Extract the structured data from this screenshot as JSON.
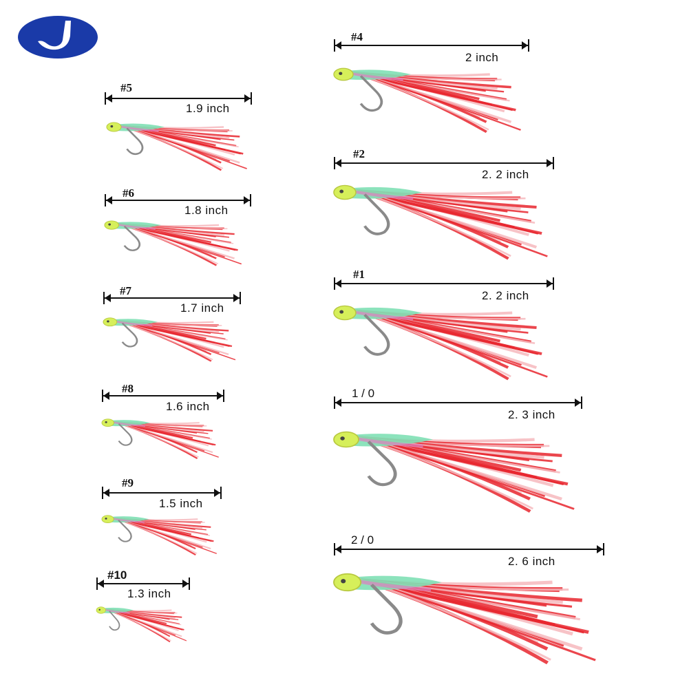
{
  "brand": {
    "logo_icon": "j-hook-logo-icon",
    "logo_color": "#1a3aa8"
  },
  "colors": {
    "feather": "#e8262e",
    "feather_light": "#f6b9bd",
    "head": "#d6ef5a",
    "flash": "#7fe0b5",
    "hook": "#8a8a8a"
  },
  "lures": [
    {
      "size": "#4",
      "length": "2   inch"
    },
    {
      "size": "#5",
      "length": "1.9   inch"
    },
    {
      "size": "#2",
      "length": "2. 2   inch"
    },
    {
      "size": "#6",
      "length": "1.8   inch"
    },
    {
      "size": "#1",
      "length": "2. 2   inch"
    },
    {
      "size": "#7",
      "length": "1.7   inch"
    },
    {
      "size": "#8",
      "length": "1.6 inch"
    },
    {
      "size": "1 / 0",
      "length": "2. 3   inch"
    },
    {
      "size": "#9",
      "length": "1.5   inch"
    },
    {
      "size": "#10",
      "length": "1.3   inch"
    },
    {
      "size": "2 / 0",
      "length": "2. 6   inch"
    }
  ]
}
